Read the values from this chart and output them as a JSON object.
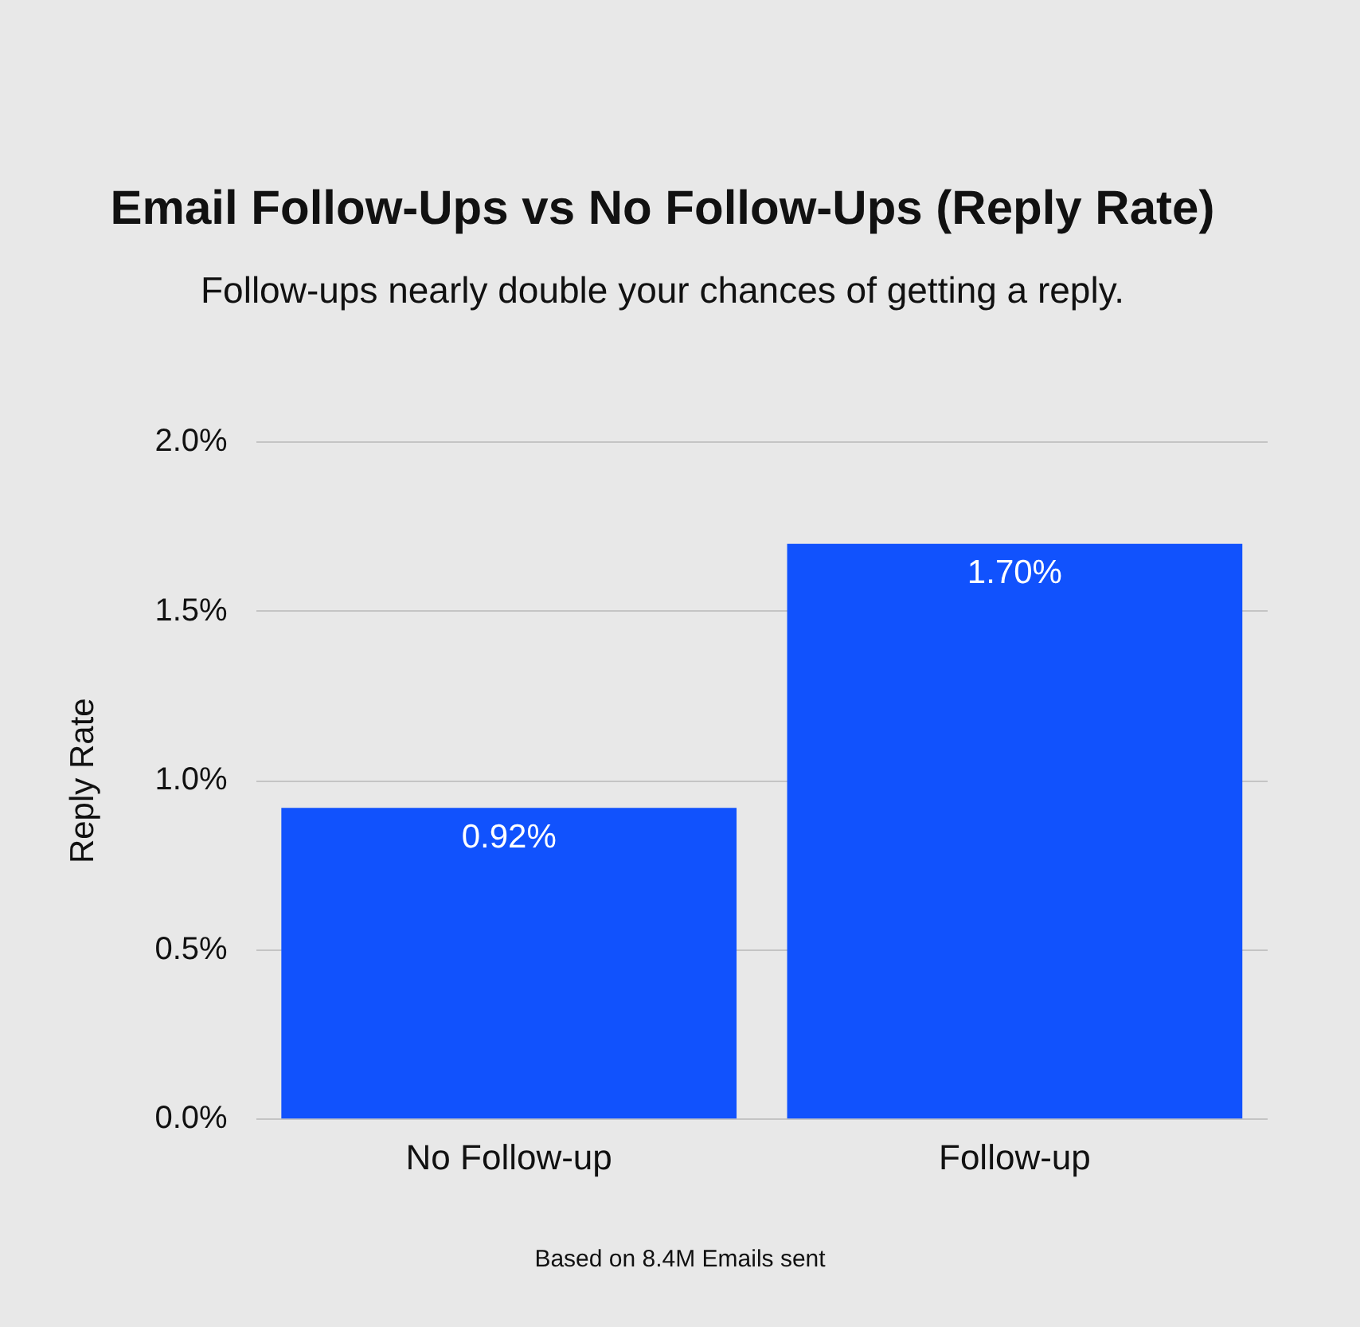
{
  "chart_data": {
    "type": "bar",
    "title": "Email Follow-Ups vs No Follow-Ups (Reply Rate)",
    "subtitle": "Follow-ups nearly double your chances of getting a reply.",
    "ylabel": "Reply Rate",
    "categories": [
      "No Follow-up",
      "Follow-up"
    ],
    "values": [
      0.92,
      1.7
    ],
    "value_labels": [
      "0.92%",
      "1.70%"
    ],
    "color": "#1152fd",
    "ylim": [
      0,
      2.0
    ],
    "yticks": [
      {
        "value": 0,
        "label": "0.0%"
      },
      {
        "value": 0.5,
        "label": "0.5%"
      },
      {
        "value": 1.0,
        "label": "1.0%"
      },
      {
        "value": 1.5,
        "label": "1.5%"
      },
      {
        "value": 2.0,
        "label": "2.0%"
      }
    ],
    "grid": "y",
    "annotations": [
      "Based on 8.4M Emails sent"
    ]
  }
}
